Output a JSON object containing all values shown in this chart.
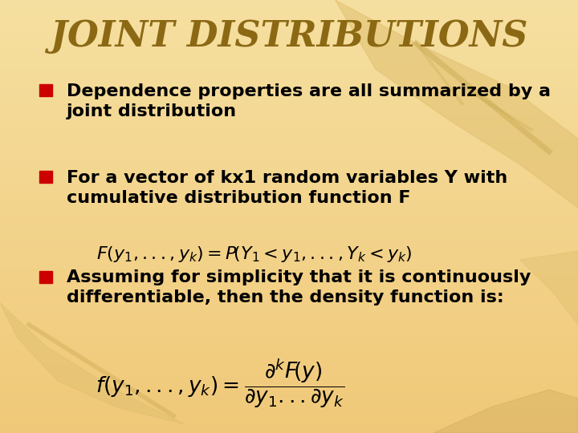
{
  "title": "JOINT DISTRIBUTIONS",
  "title_color": "#8B6914",
  "title_fontsize": 32,
  "bg_color_top": "#F5DFA0",
  "bg_color_bottom": "#F0C878",
  "bullet_color": "#CC0000",
  "text_color": "#000000",
  "bullet1_line1": "Dependence properties are all summarized by a",
  "bullet1_line2": "joint distribution",
  "bullet2_line1": "For a vector of kx1 random variables Y with",
  "bullet2_line2": "cumulative distribution function F",
  "bullet3_line1": "Assuming for simplicity that it is continuously",
  "bullet3_line2": "differentiable, then the density function is:",
  "text_fontsize": 16,
  "eq_fontsize": 16
}
